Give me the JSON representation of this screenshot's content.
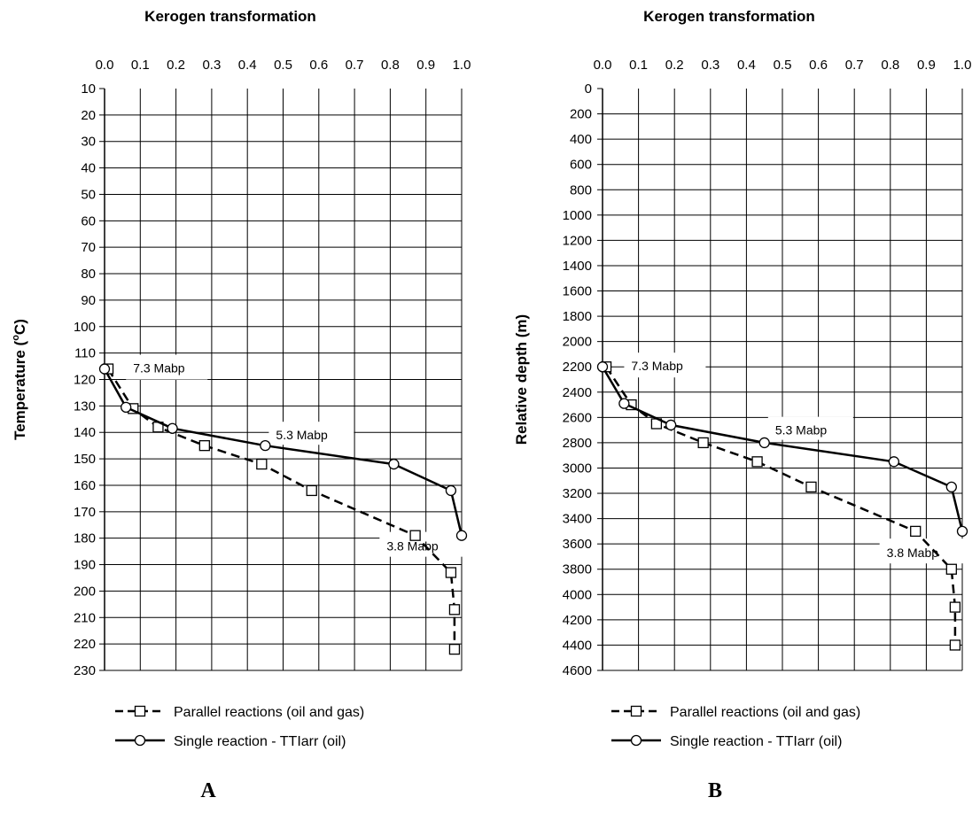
{
  "chart_data": [
    {
      "type": "line",
      "panel_label": "A",
      "title": "Kerogen transformation",
      "ylabel": "Temperature (°C)",
      "ylabel_main": "Temperature (",
      "ylabel_sup": "o",
      "ylabel_end": "C)",
      "xlim": [
        0,
        1
      ],
      "ylim": [
        10,
        230
      ],
      "y_reversed": true,
      "x_axis_position": "top",
      "grid": true,
      "legend_placement": "bottom",
      "x_ticks": [
        "0.0",
        "0.1",
        "0.2",
        "0.3",
        "0.4",
        "0.5",
        "0.6",
        "0.7",
        "0.8",
        "0.9",
        "1.0"
      ],
      "y_ticks": [
        "10",
        "20",
        "30",
        "40",
        "50",
        "60",
        "70",
        "80",
        "90",
        "100",
        "110",
        "120",
        "130",
        "140",
        "150",
        "160",
        "170",
        "180",
        "190",
        "200",
        "210",
        "220",
        "230"
      ],
      "series": [
        {
          "name": "Parallel reactions (oil and gas)",
          "style": "dashed",
          "marker": "square",
          "x": [
            0.01,
            0.08,
            0.15,
            0.28,
            0.44,
            0.58,
            0.87,
            0.97,
            0.98,
            0.98
          ],
          "y": [
            116,
            131,
            138,
            145,
            152,
            162,
            179,
            193,
            207,
            222
          ]
        },
        {
          "name": "Single reaction - TTIarr (oil)",
          "style": "solid",
          "marker": "circle",
          "x": [
            0.0,
            0.06,
            0.19,
            0.45,
            0.81,
            0.97,
            1.0
          ],
          "y": [
            116,
            130.5,
            138.5,
            145,
            152,
            162,
            179
          ]
        }
      ],
      "annotations": [
        {
          "text": "7.3 Mabp",
          "x": 0.07,
          "y": 116
        },
        {
          "text": "5.3 Mabp",
          "x": 0.47,
          "y": 141
        },
        {
          "text": "3.8 Mabp",
          "x": 0.78,
          "y": 183
        }
      ]
    },
    {
      "type": "line",
      "panel_label": "B",
      "title": "Kerogen transformation",
      "ylabel": "Relative depth (m)",
      "xlim": [
        0,
        1
      ],
      "ylim": [
        0,
        4600
      ],
      "y_reversed": true,
      "x_axis_position": "top",
      "grid": true,
      "legend_placement": "bottom",
      "x_ticks": [
        "0.0",
        "0.1",
        "0.2",
        "0.3",
        "0.4",
        "0.5",
        "0.6",
        "0.7",
        "0.8",
        "0.9",
        "1.0"
      ],
      "y_ticks": [
        "0",
        "200",
        "400",
        "600",
        "800",
        "1000",
        "1200",
        "1400",
        "1600",
        "1800",
        "2000",
        "2200",
        "2400",
        "2600",
        "2800",
        "3000",
        "3200",
        "3400",
        "3600",
        "3800",
        "4000",
        "4200",
        "4400",
        "4600"
      ],
      "series": [
        {
          "name": "Parallel reactions (oil and gas)",
          "style": "dashed",
          "marker": "square",
          "x": [
            0.01,
            0.08,
            0.15,
            0.28,
            0.43,
            0.58,
            0.87,
            0.97,
            0.98,
            0.98
          ],
          "y": [
            2200,
            2500,
            2650,
            2800,
            2950,
            3150,
            3500,
            3800,
            4100,
            4400
          ]
        },
        {
          "name": "Single reaction - TTIarr (oil)",
          "style": "solid",
          "marker": "circle",
          "x": [
            0.0,
            0.06,
            0.19,
            0.45,
            0.81,
            0.97,
            1.0
          ],
          "y": [
            2200,
            2490,
            2660,
            2800,
            2950,
            3150,
            3500
          ]
        }
      ],
      "annotations": [
        {
          "text": "7.3 Mabp",
          "x": 0.07,
          "y": 2200
        },
        {
          "text": "5.3 Mabp",
          "x": 0.47,
          "y": 2700
        },
        {
          "text": "3.8 Mabp",
          "x": 0.78,
          "y": 3670
        }
      ]
    }
  ]
}
